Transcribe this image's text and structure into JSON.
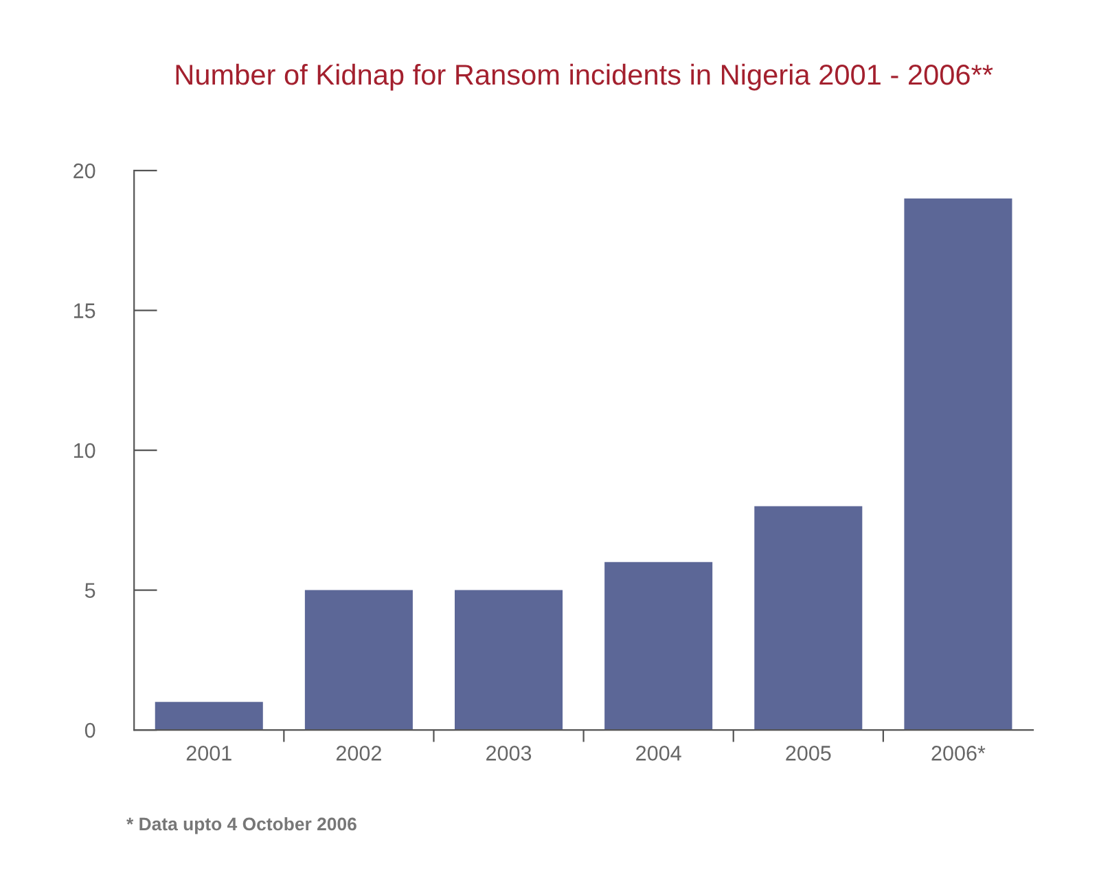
{
  "chart_data": {
    "type": "bar",
    "title": "Number of Kidnap for Ransom incidents in Nigeria 2001 - 2006**",
    "categories": [
      "2001",
      "2002",
      "2003",
      "2004",
      "2005",
      "2006*"
    ],
    "values": [
      1,
      5,
      5,
      6,
      8,
      19
    ],
    "color": "#5c6797",
    "ylim": [
      0,
      20
    ],
    "yticks": [
      0,
      5,
      10,
      15,
      20
    ],
    "grid": false,
    "legend": false,
    "annotations": [
      "* Data upto 4 October 2006"
    ]
  }
}
